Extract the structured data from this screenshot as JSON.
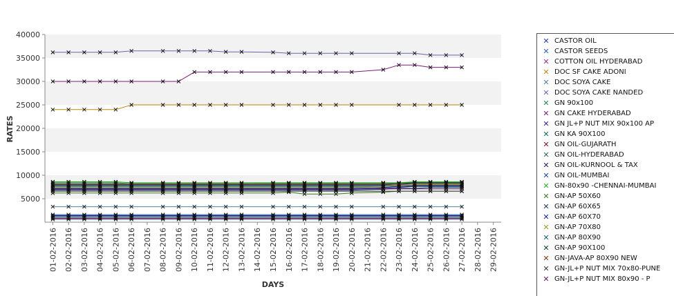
{
  "chart_data": {
    "type": "line",
    "title": "",
    "xlabel": "DAYS",
    "ylabel": "RATES",
    "ylim": [
      0,
      40000
    ],
    "yticks": [
      5000,
      10000,
      15000,
      20000,
      25000,
      30000,
      35000,
      40000
    ],
    "grid": "alternating horizontal bands",
    "legend_position": "right",
    "categories": [
      "01-02-2016",
      "02-02-2016",
      "03-02-2016",
      "04-02-2016",
      "05-02-2016",
      "06-02-2016",
      "07-02-2016",
      "08-02-2016",
      "09-02-2016",
      "10-02-2016",
      "11-02-2016",
      "12-02-2016",
      "13-02-2016",
      "14-02-2016",
      "15-02-2016",
      "16-02-2016",
      "17-02-2016",
      "18-02-2016",
      "19-02-2016",
      "20-02-2016",
      "21-02-2016",
      "22-02-2016",
      "23-02-2016",
      "24-02-2016",
      "25-02-2016",
      "26-02-2016",
      "27-02-2016",
      "28-02-2016",
      "29-02-2016"
    ],
    "series": [
      {
        "name": "CASTOR OIL",
        "color": "#1f3fa8",
        "values": [
          1200,
          1200,
          1200,
          1200,
          1200,
          1200,
          null,
          1200,
          1200,
          1200,
          1200,
          1200,
          1200,
          null,
          1200,
          1200,
          1200,
          1200,
          1200,
          1200,
          null,
          1200,
          1200,
          1200,
          1200,
          1200,
          1200,
          null,
          null
        ]
      },
      {
        "name": "CASTOR SEEDS",
        "color": "#2a5fb0",
        "values": [
          600,
          600,
          600,
          600,
          600,
          600,
          null,
          600,
          600,
          600,
          600,
          600,
          600,
          null,
          600,
          600,
          600,
          600,
          600,
          600,
          null,
          600,
          600,
          600,
          600,
          600,
          600,
          null,
          null
        ]
      },
      {
        "name": "COTTON OIL HYDERABAD",
        "color": "#9c2a8a",
        "values": [
          7900,
          7900,
          7900,
          7900,
          7900,
          7900,
          null,
          7900,
          7900,
          7900,
          7900,
          7900,
          7900,
          null,
          7900,
          7900,
          7900,
          7900,
          7900,
          7900,
          null,
          7900,
          7900,
          7900,
          7900,
          7900,
          7900,
          null,
          null
        ]
      },
      {
        "name": "DOC SF CAKE ADONI",
        "color": "#b8860b",
        "values": [
          24000,
          24000,
          24000,
          24000,
          24000,
          25000,
          null,
          25000,
          25000,
          25000,
          25000,
          25000,
          25000,
          null,
          25000,
          25000,
          25000,
          25000,
          25000,
          25000,
          null,
          null,
          25000,
          25000,
          25000,
          25000,
          25000,
          null,
          null
        ]
      },
      {
        "name": "DOC SOYA CAKE",
        "color": "#4f7f9f",
        "values": [
          3300,
          3300,
          3300,
          3300,
          3300,
          3300,
          null,
          3300,
          3300,
          3300,
          3300,
          3300,
          3300,
          null,
          3300,
          3300,
          3300,
          3300,
          3300,
          3300,
          null,
          3300,
          3300,
          3300,
          3300,
          3300,
          3300,
          null,
          null
        ]
      },
      {
        "name": "DOC SOYA CAKE NANDED",
        "color": "#6666aa",
        "values": [
          36200,
          36200,
          36200,
          36200,
          36200,
          36500,
          null,
          36500,
          36500,
          36500,
          36500,
          36300,
          36300,
          null,
          36200,
          36000,
          36000,
          36000,
          36000,
          36000,
          null,
          null,
          36000,
          36000,
          35600,
          35600,
          35600,
          null,
          null
        ]
      },
      {
        "name": "GN 90x100",
        "color": "#1a8a4a",
        "values": [
          8400,
          8400,
          8400,
          8400,
          8400,
          8200,
          null,
          8200,
          8200,
          8200,
          8200,
          8200,
          8200,
          null,
          8300,
          8300,
          8300,
          8300,
          8300,
          8300,
          null,
          8300,
          8300,
          8500,
          8500,
          8500,
          8500,
          null,
          null
        ]
      },
      {
        "name": "GN CAKE HYDERABAD",
        "color": "#7a1a7a",
        "values": [
          30000,
          30000,
          30000,
          30000,
          30000,
          30000,
          null,
          30000,
          30000,
          32000,
          32000,
          32000,
          32000,
          null,
          32000,
          32000,
          32000,
          32000,
          32000,
          32000,
          null,
          32500,
          33500,
          33500,
          33000,
          33000,
          33000,
          null,
          null
        ]
      },
      {
        "name": "GN JL+P NUT MIX 90x100 AP",
        "color": "#3a1a8a",
        "values": [
          7000,
          7000,
          7000,
          7000,
          7000,
          7000,
          null,
          7000,
          7000,
          7000,
          7000,
          7000,
          7000,
          null,
          7000,
          7000,
          7000,
          7000,
          7000,
          7000,
          null,
          7200,
          7400,
          7600,
          7600,
          7600,
          7600,
          null,
          null
        ]
      },
      {
        "name": "GN KA 90X100",
        "color": "#0a6a6a",
        "values": [
          7600,
          7600,
          7600,
          7600,
          7600,
          7600,
          null,
          7600,
          7600,
          7600,
          7600,
          7600,
          7600,
          null,
          7600,
          7600,
          7600,
          7600,
          7600,
          7600,
          null,
          7600,
          7600,
          7600,
          7600,
          7600,
          7600,
          null,
          null
        ]
      },
      {
        "name": "GN OIL-GUJARATH",
        "color": "#7a0a2a",
        "values": [
          800,
          800,
          800,
          800,
          800,
          800,
          null,
          800,
          800,
          800,
          800,
          800,
          800,
          null,
          800,
          800,
          800,
          800,
          800,
          800,
          null,
          800,
          800,
          800,
          800,
          800,
          800,
          null,
          null
        ]
      },
      {
        "name": "GN OIL-HYDERABAD",
        "color": "#2a6a5a",
        "values": [
          1000,
          1000,
          1000,
          1000,
          1000,
          1000,
          null,
          1000,
          1000,
          1000,
          1000,
          1000,
          1000,
          null,
          1000,
          1000,
          1000,
          1000,
          1000,
          1000,
          null,
          1000,
          1000,
          1000,
          1000,
          1000,
          1000,
          null,
          null
        ]
      },
      {
        "name": "GN OIL-KURNOOL & TAX",
        "color": "#1a1a6a",
        "values": [
          1400,
          1400,
          1400,
          1400,
          1400,
          1400,
          null,
          1400,
          1400,
          1400,
          1400,
          1400,
          1400,
          null,
          1400,
          1400,
          1400,
          1400,
          1400,
          1400,
          null,
          1400,
          1400,
          1400,
          1400,
          1400,
          1400,
          null,
          null
        ]
      },
      {
        "name": "GN OIL-MUMBAI",
        "color": "#1a4a9a",
        "values": [
          1600,
          1600,
          1600,
          1600,
          1600,
          1600,
          null,
          1600,
          1600,
          1600,
          1600,
          1600,
          1600,
          null,
          1600,
          1600,
          1600,
          1600,
          1600,
          1600,
          null,
          1600,
          1600,
          1600,
          1600,
          1600,
          1600,
          null,
          null
        ]
      },
      {
        "name": "GN-80x90 -CHENNAI-MUMBAI",
        "color": "#22aa22",
        "values": [
          8600,
          8600,
          8600,
          8600,
          8600,
          8400,
          null,
          8400,
          8400,
          8400,
          8400,
          8400,
          8400,
          null,
          8400,
          8400,
          8400,
          8400,
          8400,
          8400,
          null,
          8400,
          8400,
          8600,
          8600,
          8600,
          8600,
          null,
          null
        ]
      },
      {
        "name": "GN-AP 50X60",
        "color": "#3a7a1a",
        "values": [
          6200,
          6200,
          6200,
          6200,
          6200,
          6200,
          null,
          6200,
          6200,
          6200,
          6200,
          6200,
          6200,
          null,
          6200,
          6400,
          6000,
          6000,
          6000,
          6200,
          null,
          6400,
          6600,
          6600,
          6600,
          6600,
          6600,
          null,
          null
        ]
      },
      {
        "name": "GN-AP 60X65",
        "color": "#1a3a6a",
        "values": [
          6800,
          6800,
          6800,
          6800,
          6800,
          6800,
          null,
          6800,
          6800,
          6800,
          6800,
          6800,
          6800,
          null,
          6800,
          6800,
          6800,
          6800,
          6800,
          6800,
          null,
          7000,
          7200,
          7200,
          7400,
          7400,
          7400,
          null,
          null
        ]
      },
      {
        "name": "GN-AP 60X70",
        "color": "#0a2a8a",
        "values": [
          7200,
          7200,
          7200,
          7200,
          7200,
          7200,
          null,
          7200,
          7200,
          7200,
          7200,
          7200,
          7200,
          null,
          7200,
          7200,
          7200,
          7200,
          7200,
          7200,
          null,
          7400,
          7600,
          7800,
          7800,
          7800,
          7800,
          null,
          null
        ]
      },
      {
        "name": "GN-AP 70X80",
        "color": "#9a9a1a",
        "values": [
          7400,
          7400,
          7400,
          7400,
          7400,
          7400,
          null,
          7400,
          7400,
          7400,
          7400,
          7400,
          7400,
          null,
          7400,
          7400,
          7400,
          7400,
          7400,
          7400,
          null,
          7600,
          7800,
          8000,
          8000,
          8000,
          8000,
          null,
          null
        ]
      },
      {
        "name": "GN-AP 80X90",
        "color": "#1a5a7a",
        "values": [
          7800,
          7800,
          7800,
          7800,
          7800,
          7800,
          null,
          7800,
          7800,
          7800,
          7800,
          7800,
          7800,
          null,
          7800,
          7800,
          7800,
          7800,
          7800,
          7800,
          null,
          7800,
          8000,
          8200,
          8200,
          8200,
          8200,
          null,
          null
        ]
      },
      {
        "name": "GN-AP 90X100",
        "color": "#0a3a3a",
        "values": [
          8000,
          8000,
          8000,
          8000,
          8000,
          8000,
          null,
          8000,
          8000,
          8000,
          8000,
          8000,
          8000,
          null,
          8000,
          8000,
          8000,
          8000,
          8000,
          8000,
          null,
          8000,
          8200,
          8400,
          8400,
          8400,
          8400,
          null,
          null
        ]
      },
      {
        "name": "GN-JAVA-AP 80X90 NEW",
        "color": "#7a3a0a",
        "values": [
          8200,
          8200,
          8200,
          8200,
          8200,
          8200,
          null,
          8200,
          8200,
          8200,
          8200,
          8200,
          8200,
          null,
          8200,
          8200,
          8200,
          8200,
          8200,
          8200,
          null,
          8200,
          8200,
          8200,
          8200,
          8200,
          8200,
          null,
          null
        ]
      },
      {
        "name": "GN-JL+P NUT MIX 70x80-PUNE",
        "color": "#3a3a3a",
        "values": [
          6600,
          6600,
          6600,
          6600,
          6600,
          6600,
          null,
          6600,
          6600,
          6600,
          6600,
          6600,
          6600,
          null,
          6600,
          6600,
          6600,
          6600,
          6600,
          6600,
          null,
          6600,
          6600,
          6600,
          6600,
          6600,
          6600,
          null,
          null
        ]
      },
      {
        "name": "GN-JL+P NUT MIX 80x90 - P",
        "color": "#5a1a5a",
        "values": [
          7100,
          7100,
          7100,
          7100,
          7100,
          7100,
          null,
          7100,
          7100,
          7100,
          7100,
          7100,
          7100,
          null,
          7100,
          7100,
          7100,
          7100,
          7100,
          7100,
          null,
          7100,
          7100,
          7100,
          7100,
          7100,
          7100,
          null,
          null
        ]
      }
    ]
  }
}
